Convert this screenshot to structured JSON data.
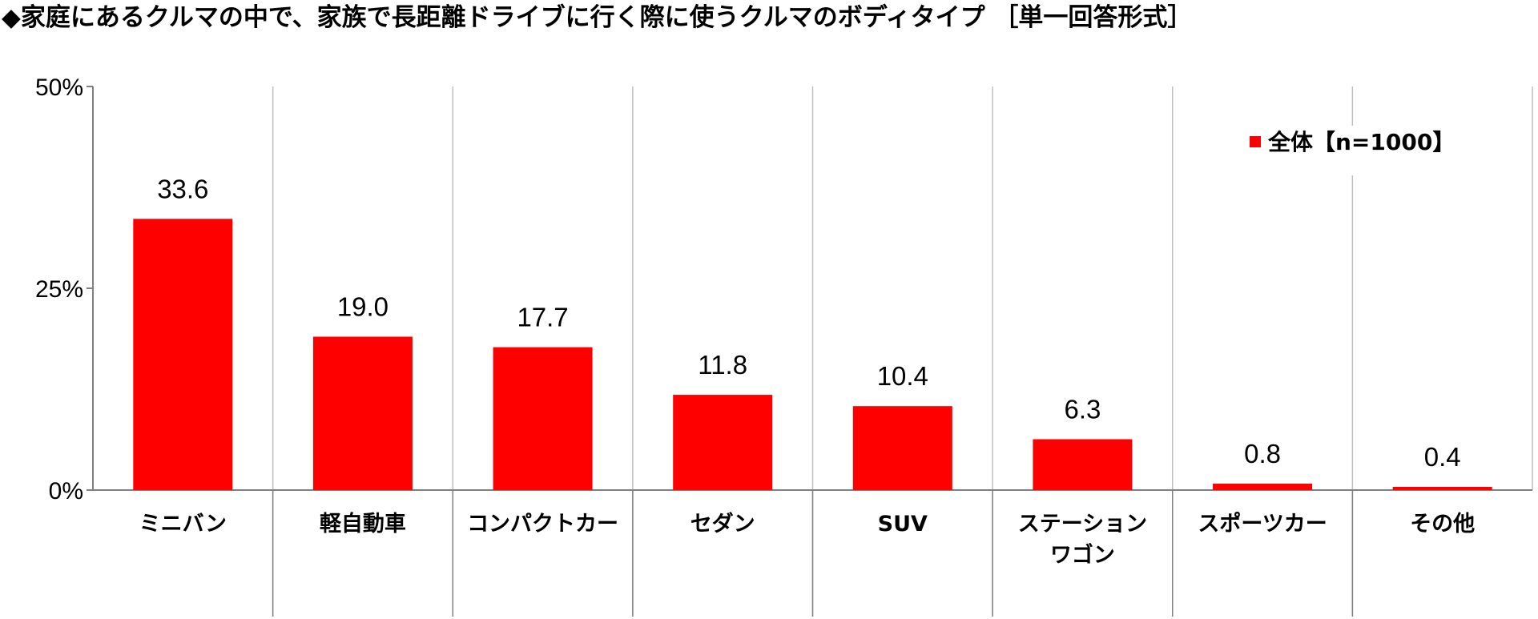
{
  "header": {
    "title": "◆家庭にあるクルマの中で、家族で長距離ドライブに行く際に使うクルマのボディタイプ ［単一回答形式］"
  },
  "colors": {
    "bar": "#ff0000",
    "axis": "#808080",
    "grid": "#bfbfbf"
  },
  "chart_data": {
    "type": "bar",
    "categories": [
      [
        "ミニバン"
      ],
      [
        "軽自動車"
      ],
      [
        "コンパクトカー"
      ],
      [
        "セダン"
      ],
      [
        "SUV"
      ],
      [
        "ステーション",
        "ワゴン"
      ],
      [
        "スポーツカー"
      ],
      [
        "その他"
      ]
    ],
    "series": [
      {
        "name": "全体【n=1000】",
        "values": [
          33.6,
          19.0,
          17.7,
          11.8,
          10.4,
          6.3,
          0.8,
          0.4
        ],
        "labels": [
          "33.6",
          "19.0",
          "17.7",
          "11.8",
          "10.4",
          "6.3",
          "0.8",
          "0.4"
        ]
      }
    ],
    "yticks": [
      "50%",
      "25%",
      "0%"
    ],
    "ytick_values": [
      50,
      25,
      0
    ],
    "ylim": [
      0,
      50
    ],
    "grid": "vertical",
    "legend_position": "top-right"
  }
}
